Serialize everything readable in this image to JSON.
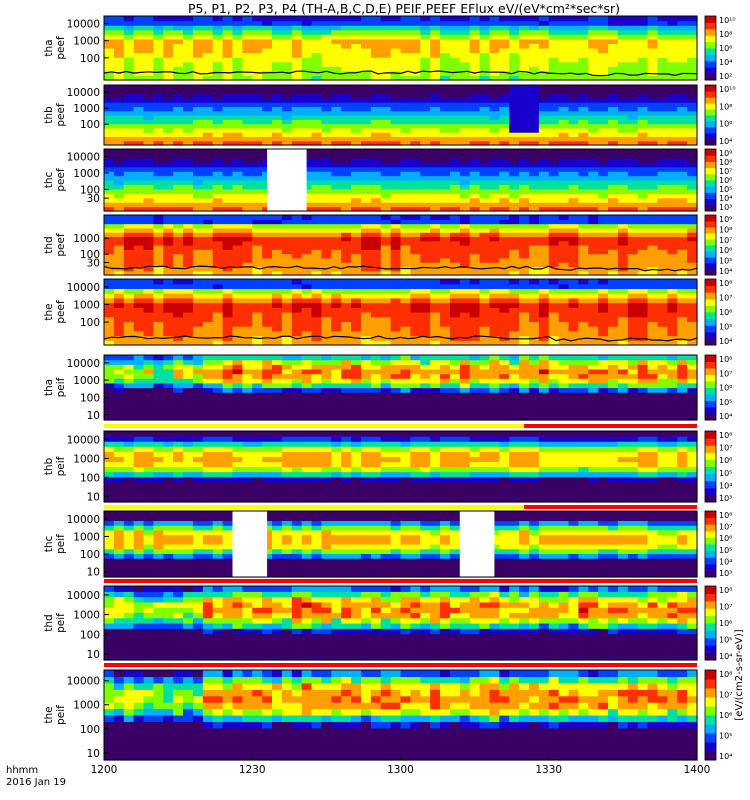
{
  "title": "P5, P1, P2, P3, P4 (TH-A,B,C,D,E) PEIF,PEEF EFlux eV/(eV*cm²*sec*sr)",
  "colorbar_label": "[eV/(cm2-s-sr-eV)]",
  "time_axis": {
    "label_line1": "hhmm",
    "label_line2": "2016 Jan 19",
    "ticks": [
      "1200",
      "1230",
      "1300",
      "1330",
      "1400"
    ],
    "range": [
      "12:00",
      "14:00"
    ]
  },
  "colorscale": [
    "#3a0066",
    "#1a00cc",
    "#0040ff",
    "#00b0ff",
    "#00e0a0",
    "#80ff00",
    "#ffff00",
    "#ffa000",
    "#ff3000",
    "#c80000"
  ],
  "chart_data": [
    {
      "type": "heatmap",
      "name": "tha peef",
      "label1": "tha",
      "label2": "peef",
      "kind": "electron",
      "yticks": [
        "100",
        "1000",
        "10000"
      ],
      "ylog": [
        5,
        28000
      ],
      "zticks": [
        "10²",
        "10⁴",
        "10⁶",
        "10⁸",
        "10¹⁰"
      ],
      "base": 5.6,
      "peak_energy": 1000,
      "gaps": [],
      "black_line": true
    },
    {
      "type": "heatmap",
      "name": "thb peef",
      "label1": "thb",
      "label2": "peef",
      "kind": "electron_quiet",
      "yticks": [
        "100",
        "1000",
        "10000"
      ],
      "ylog": [
        5,
        28000
      ],
      "zticks": [
        "10⁴",
        "10⁶",
        "10⁸",
        "10¹⁰"
      ],
      "base": 4.0,
      "peak_energy": 100,
      "gaps": [],
      "block": [
        "13:22",
        "13:28"
      ],
      "black_line": false
    },
    {
      "type": "heatmap",
      "name": "thc peef",
      "label1": "thc",
      "label2": "peef",
      "kind": "electron_quiet",
      "yticks": [
        "30",
        "100",
        "1000",
        "10000"
      ],
      "ylog": [
        5,
        28000
      ],
      "zticks": [
        "10³",
        "10⁴",
        "10⁵",
        "10⁶",
        "10⁷",
        "10⁸",
        "10⁹"
      ],
      "base": 4.2,
      "peak_energy": 50,
      "gaps": [
        [
          "12:33",
          "12:41"
        ]
      ],
      "black_line": false
    },
    {
      "type": "heatmap",
      "name": "thd peef",
      "label1": "thd",
      "label2": "peef",
      "kind": "electron_hot",
      "yticks": [
        "30",
        "100",
        "1000"
      ],
      "ylog": [
        5,
        28000
      ],
      "zticks": [
        "10⁴",
        "10⁵",
        "10⁶",
        "10⁷",
        "10⁸",
        "10⁹"
      ],
      "base": 6.6,
      "peak_energy": 1000,
      "gaps": [],
      "black_line": true
    },
    {
      "type": "heatmap",
      "name": "the peef",
      "label1": "the",
      "label2": "peef",
      "kind": "electron_hot",
      "yticks": [
        "100",
        "1000",
        "10000"
      ],
      "ylog": [
        5,
        28000
      ],
      "zticks": [
        "10⁴",
        "10⁵",
        "10⁶",
        "10⁷",
        "10⁸"
      ],
      "base": 6.8,
      "peak_energy": 1000,
      "gaps": [],
      "black_line": true
    },
    {
      "type": "heatmap",
      "name": "tha peif",
      "label1": "tha",
      "label2": "peif",
      "kind": "ion_patchy",
      "yticks": [
        "10",
        "100",
        "1000",
        "10000"
      ],
      "ylog": [
        5,
        28000
      ],
      "zticks": [
        "10⁴",
        "10⁵",
        "10⁶",
        "10⁷",
        "10⁸"
      ],
      "base": 5.2,
      "peak_energy": 3000,
      "gaps": [],
      "black_line": false,
      "bar": "yellow_red",
      "bar_switch": "13:25"
    },
    {
      "type": "heatmap",
      "name": "thb peif",
      "label1": "thb",
      "label2": "peif",
      "kind": "ion_band",
      "yticks": [
        "10",
        "100",
        "1000",
        "10000"
      ],
      "ylog": [
        5,
        28000
      ],
      "zticks": [
        "10³",
        "10⁴",
        "10⁵",
        "10⁶",
        "10⁷",
        "10⁸"
      ],
      "base": 5.5,
      "peak_energy": 1000,
      "gaps": [],
      "black_line": false,
      "bar": "yellow_red",
      "bar_switch": "13:25"
    },
    {
      "type": "heatmap",
      "name": "thc peif",
      "label1": "thc",
      "label2": "peif",
      "kind": "ion_band",
      "yticks": [
        "10",
        "100",
        "1000",
        "10000"
      ],
      "ylog": [
        5,
        28000
      ],
      "zticks": [
        "10³",
        "10⁴",
        "10⁵",
        "10⁶",
        "10⁷",
        "10⁸"
      ],
      "base": 5.5,
      "peak_energy": 700,
      "gaps": [
        [
          "12:26",
          "12:33"
        ],
        [
          "13:12",
          "13:19"
        ]
      ],
      "black_line": false,
      "bar": "red"
    },
    {
      "type": "heatmap",
      "name": "thd peif",
      "label1": "thd",
      "label2": "peif",
      "kind": "ion_patchy",
      "yticks": [
        "10",
        "100",
        "1000",
        "10000"
      ],
      "ylog": [
        5,
        28000
      ],
      "zticks": [
        "10⁴",
        "10⁵",
        "10⁶",
        "10⁷",
        "10⁸"
      ],
      "base": 5.6,
      "peak_energy": 2000,
      "gaps": [],
      "black_line": false,
      "bar": "red"
    },
    {
      "type": "heatmap",
      "name": "the peif",
      "label1": "the",
      "label2": "peif",
      "kind": "ion_patchy",
      "yticks": [
        "10",
        "100",
        "1000",
        "10000"
      ],
      "ylog": [
        5,
        28000
      ],
      "zticks": [
        "10⁴",
        "10⁵",
        "10⁶",
        "10⁷",
        "10⁸"
      ],
      "base": 5.6,
      "peak_energy": 2000,
      "gaps": [],
      "black_line": false,
      "bar": "none"
    }
  ]
}
